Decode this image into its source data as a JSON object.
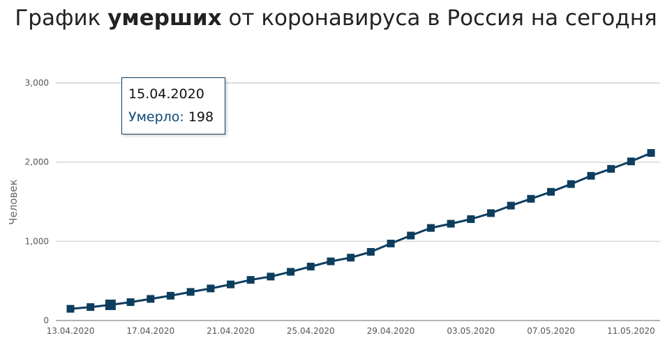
{
  "title": {
    "prefix": "График ",
    "bold": "умерших",
    "suffix": " от коронавируса в Россия на сегодня"
  },
  "tooltip": {
    "date": "15.04.2020",
    "label": "Умерло:",
    "value": "198"
  },
  "chart_data": {
    "type": "line",
    "title": "График умерших от коронавируса в Россия на сегодня",
    "xlabel": "",
    "ylabel": "Человек",
    "ylim": [
      0,
      3000
    ],
    "yticks": [
      "0",
      "1,000",
      "2,000",
      "3,000"
    ],
    "ytick_values": [
      0,
      1000,
      2000,
      3000
    ],
    "xtick_labels": [
      "13.04.2020",
      "17.04.2020",
      "21.04.2020",
      "25.04.2020",
      "29.04.2020",
      "03.05.2020",
      "07.05.2020",
      "11.05.2020"
    ],
    "grid": true,
    "legend": "none",
    "series_color": "#0d3d5e",
    "x": [
      "13.04.2020",
      "14.04.2020",
      "15.04.2020",
      "16.04.2020",
      "17.04.2020",
      "18.04.2020",
      "19.04.2020",
      "20.04.2020",
      "21.04.2020",
      "22.04.2020",
      "23.04.2020",
      "24.04.2020",
      "25.04.2020",
      "26.04.2020",
      "27.04.2020",
      "28.04.2020",
      "29.04.2020",
      "30.04.2020",
      "01.05.2020",
      "02.05.2020",
      "03.05.2020",
      "04.05.2020",
      "05.05.2020",
      "06.05.2020",
      "07.05.2020",
      "08.05.2020",
      "09.05.2020",
      "10.05.2020",
      "11.05.2020",
      "12.05.2020"
    ],
    "series": [
      {
        "name": "Умерло",
        "values": [
          148,
          170,
          198,
          232,
          273,
          313,
          361,
          405,
          456,
          513,
          555,
          615,
          681,
          747,
          794,
          867,
          972,
          1073,
          1169,
          1222,
          1280,
          1356,
          1451,
          1537,
          1625,
          1723,
          1827,
          1915,
          2009,
          2116
        ]
      }
    ],
    "highlighted_index": 2
  }
}
